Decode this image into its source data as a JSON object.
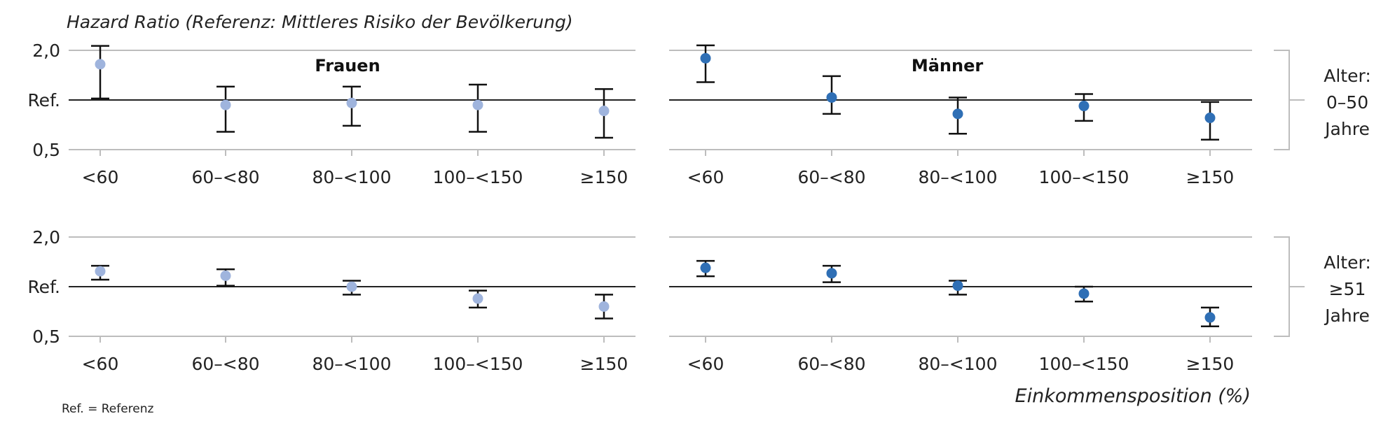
{
  "chart_data": {
    "type": "errorbar",
    "ylabel": "Hazard Ratio (Referenz: Mittleres Risiko der Bevölkerung)",
    "xlabel": "Einkommensposition (%)",
    "note": "Ref. = Referenz",
    "categories": [
      "<60",
      "60–<80",
      "80–<100",
      "100–<150",
      "≥150"
    ],
    "ytick_labels": [
      "2,0",
      "Ref.",
      "0,5"
    ],
    "ylim": [
      0.5,
      2.0
    ],
    "reference": 1.0,
    "grid": true,
    "colors": {
      "Frauen": "#9fb4dd",
      "Männer": "#2f6fb5"
    },
    "panel_titles": [
      "Frauen",
      "Männer"
    ],
    "age_groups": [
      {
        "label_lines": [
          "Alter:",
          "0–50",
          "Jahre"
        ]
      },
      {
        "label_lines": [
          "Alter:",
          "≥51",
          "Jahre"
        ]
      }
    ],
    "panels": [
      {
        "sex": "Frauen",
        "age_group": 0,
        "values": [
          1.72,
          0.95,
          0.97,
          0.95,
          0.89
        ],
        "lower": [
          1.03,
          0.68,
          0.74,
          0.68,
          0.62
        ],
        "upper": [
          2.09,
          1.27,
          1.27,
          1.31,
          1.22
        ]
      },
      {
        "sex": "Männer",
        "age_group": 0,
        "values": [
          1.84,
          1.05,
          0.86,
          0.94,
          0.82
        ],
        "lower": [
          1.36,
          0.86,
          0.66,
          0.79,
          0.6
        ],
        "upper": [
          2.1,
          1.48,
          1.05,
          1.12,
          0.98
        ]
      },
      {
        "sex": "Frauen",
        "age_group": 1,
        "values": [
          1.31,
          1.22,
          1.0,
          0.88,
          0.8
        ],
        "lower": [
          1.14,
          1.02,
          0.92,
          0.79,
          0.68
        ],
        "upper": [
          1.42,
          1.35,
          1.12,
          0.96,
          0.92
        ]
      },
      {
        "sex": "Männer",
        "age_group": 1,
        "values": [
          1.38,
          1.27,
          1.02,
          0.93,
          0.69
        ],
        "lower": [
          1.21,
          1.09,
          0.92,
          0.85,
          0.6
        ],
        "upper": [
          1.52,
          1.42,
          1.12,
          1.0,
          0.79
        ]
      }
    ]
  }
}
